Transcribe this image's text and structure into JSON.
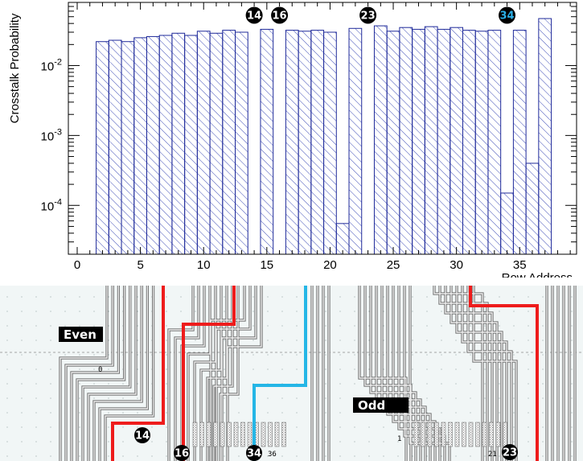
{
  "chart_data": {
    "type": "bar",
    "title": "",
    "xlabel": "Row Address",
    "ylabel": "Crosstalk Probability",
    "yscale": "log",
    "ylim": [
      2e-05,
      0.08
    ],
    "xlim": [
      -0.7,
      39.5
    ],
    "x_ticks": [
      0,
      5,
      10,
      15,
      20,
      25,
      30,
      35
    ],
    "y_ticks": [
      {
        "value": 0.0001,
        "base": "10",
        "exp": "-4"
      },
      {
        "value": 0.001,
        "base": "10",
        "exp": "-3"
      },
      {
        "value": 0.01,
        "base": "10",
        "exp": "-2"
      }
    ],
    "bar_fill": "hatched",
    "bar_color": "#1f2a9a",
    "x": [
      2,
      3,
      4,
      5,
      6,
      7,
      8,
      9,
      10,
      11,
      12,
      13,
      15,
      17,
      18,
      19,
      20,
      21,
      22,
      24,
      25,
      26,
      27,
      28,
      29,
      30,
      31,
      32,
      33,
      34,
      35,
      36,
      37
    ],
    "values": [
      0.022,
      0.023,
      0.022,
      0.025,
      0.026,
      0.027,
      0.029,
      0.027,
      0.031,
      0.029,
      0.032,
      0.03,
      0.033,
      0.032,
      0.031,
      0.032,
      0.03,
      5.5e-05,
      0.034,
      0.037,
      0.031,
      0.035,
      0.033,
      0.036,
      0.033,
      0.035,
      0.032,
      0.031,
      0.032,
      0.00015,
      0.032,
      0.0004,
      0.047
    ],
    "annotations": [
      {
        "x": 14,
        "label": "14",
        "text_color": "#ffffff"
      },
      {
        "x": 16,
        "label": "16",
        "text_color": "#ffffff"
      },
      {
        "x": 23,
        "label": "23",
        "text_color": "#ffffff"
      },
      {
        "x": 34,
        "label": "34",
        "text_color": "#2aaee6"
      }
    ]
  },
  "layout_image": {
    "even_label": "Even",
    "odd_label": "Odd",
    "row_numbers": [
      "0",
      "36",
      "1",
      "21"
    ],
    "markers": [
      "14",
      "16",
      "34",
      "23"
    ],
    "highlight_colors": {
      "red": "#ee1c1c",
      "cyan": "#25b6e6"
    }
  }
}
